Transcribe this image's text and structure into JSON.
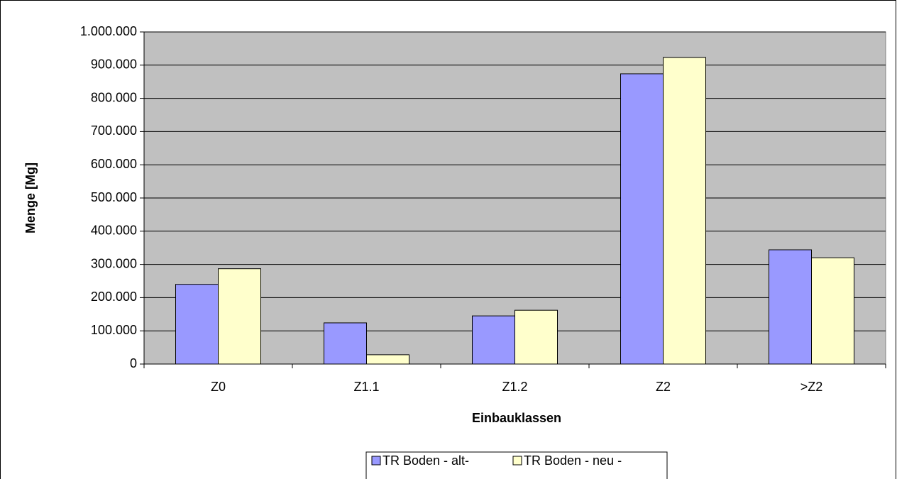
{
  "chart_data": {
    "type": "bar",
    "x_label": "Einbauklassen",
    "y_label": "Menge [Mg]",
    "categories": [
      "Z0",
      "Z1.1",
      "Z1.2",
      "Z2",
      ">Z2"
    ],
    "series": [
      {
        "name": "TR Boden - alt-",
        "color": "#9999ff",
        "values": [
          240000,
          124000,
          145000,
          874000,
          344000
        ]
      },
      {
        "name": "TR Boden - neu -",
        "color": "#ffffcc",
        "values": [
          287000,
          28000,
          162000,
          923000,
          320000
        ]
      }
    ],
    "ylim": [
      0,
      1000000
    ],
    "yticks": [
      0,
      {
        "value": 100000,
        "label": "100.000"
      },
      {
        "value": 200000,
        "label": "200.000"
      },
      {
        "value": 300000,
        "label": "300.000"
      },
      {
        "value": 400000,
        "label": "400.000"
      },
      {
        "value": 500000,
        "label": "500.000"
      },
      {
        "value": 600000,
        "label": "600.000"
      },
      {
        "value": 700000,
        "label": "700.000"
      },
      {
        "value": 800000,
        "label": "800.000"
      },
      {
        "value": 900000,
        "label": "900.000"
      },
      {
        "value": 1000000,
        "label": "1.000.000"
      }
    ],
    "grid": true,
    "plot_background": "#c0c0c0",
    "legend": "bottom"
  }
}
